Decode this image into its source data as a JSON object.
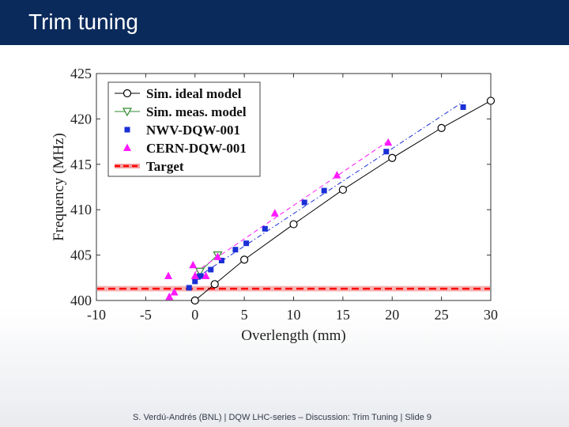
{
  "slide": {
    "title": "Trim tuning",
    "footer_authors": "S. Verdú-Andrés (BNL) | DQW LHC-series – Discussion: Trim Tuning |",
    "footer_slide_label": "Slide",
    "footer_slide_number": "9",
    "title_bar_color": "#0b2a5c"
  },
  "chart_data": {
    "type": "scatter",
    "title": "",
    "xlabel": "Overlength (mm)",
    "ylabel": "Frequency (MHz)",
    "xlim": [
      -10,
      30
    ],
    "ylim": [
      400,
      425
    ],
    "xticks": [
      -10,
      -5,
      0,
      5,
      10,
      15,
      20,
      25,
      30
    ],
    "yticks": [
      400,
      405,
      410,
      415,
      420,
      425
    ],
    "legend_position": "top-left",
    "series": [
      {
        "name": "Sim. ideal model",
        "marker": "circle-open",
        "line": "solid",
        "color": "#000000",
        "x": [
          0,
          2,
          5,
          10,
          15,
          20,
          25,
          30
        ],
        "y": [
          400.0,
          401.8,
          404.5,
          408.4,
          412.2,
          415.7,
          419.0,
          422.0
        ]
      },
      {
        "name": "Sim. meas. model",
        "marker": "triangle-down-open",
        "line": "solid",
        "color": "#2e8b2e",
        "x": [
          0.5,
          2.3
        ],
        "y": [
          403.2,
          405.0
        ]
      },
      {
        "name": "NWV-DQW-001",
        "marker": "square",
        "line": "dashdot",
        "color": "#1a2fd6",
        "x": [
          -0.6,
          0,
          0.3,
          0.6,
          1.6,
          2.7,
          4.1,
          5.2,
          7.1,
          11.1,
          13.1,
          19.4,
          27.2
        ],
        "y": [
          401.4,
          402.1,
          402.6,
          402.7,
          403.4,
          404.4,
          405.6,
          406.3,
          407.9,
          410.8,
          412.1,
          416.4,
          421.3
        ]
      },
      {
        "name": "CERN-DQW-001",
        "marker": "triangle-up",
        "line": "dashed",
        "color": "#ff19ff",
        "x": [
          -2.7,
          -2.6,
          -2.1,
          -0.2,
          0,
          1.1,
          2.3,
          8.1,
          14.4,
          19.6
        ],
        "y": [
          402.7,
          400.4,
          400.9,
          403.9,
          402.7,
          402.7,
          404.8,
          409.6,
          413.8,
          417.4
        ]
      },
      {
        "name": "Target",
        "marker": "none",
        "line": "dashed-band",
        "color": "#ff0000",
        "band_color": "#f2a0a0",
        "y": 401.3,
        "band": [
          401.0,
          401.6
        ]
      }
    ]
  }
}
